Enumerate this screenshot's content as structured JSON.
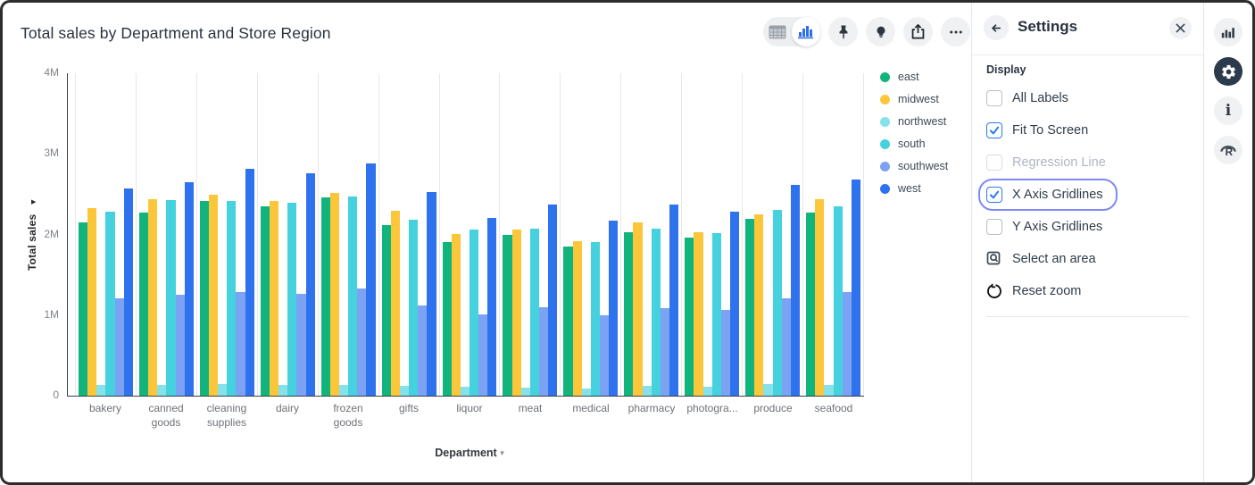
{
  "window": {
    "title": "Total sales by Department and Store Region"
  },
  "toolbar": {
    "view_toggle": {
      "options": [
        "table-view",
        "chart-view"
      ],
      "selected": "chart-view"
    },
    "buttons": [
      "pin",
      "explore",
      "share",
      "more-options"
    ]
  },
  "chart_data": {
    "type": "bar",
    "title": "Total sales by Department and Store Region",
    "xlabel": "Department",
    "ylabel": "Total sales",
    "unit": "M",
    "ylim": [
      0,
      4
    ],
    "x_gridlines": true,
    "y_gridlines": false,
    "legend_position": "right",
    "yticks": [
      {
        "label": "4M",
        "value": 4
      },
      {
        "label": "3M",
        "value": 3
      },
      {
        "label": "2M",
        "value": 2
      },
      {
        "label": "1M",
        "value": 1
      },
      {
        "label": "0",
        "value": 0
      }
    ],
    "categories": [
      "bakery",
      "canned goods",
      "cleaning supplies",
      "dairy",
      "frozen goods",
      "gifts",
      "liquor",
      "meat",
      "medical",
      "pharmacy",
      "photogra...",
      "produce",
      "seafood"
    ],
    "series": [
      {
        "name": "east",
        "color": "#12b47d",
        "values": [
          2.15,
          2.27,
          2.42,
          2.35,
          2.46,
          2.12,
          1.91,
          2.0,
          1.85,
          2.03,
          1.96,
          2.19,
          2.27
        ]
      },
      {
        "name": "midwest",
        "color": "#fcc63a",
        "values": [
          2.33,
          2.44,
          2.49,
          2.42,
          2.52,
          2.29,
          2.01,
          2.06,
          1.92,
          2.15,
          2.03,
          2.25,
          2.44
        ]
      },
      {
        "name": "northwest",
        "color": "#85e1ea",
        "values": [
          0.13,
          0.13,
          0.14,
          0.13,
          0.13,
          0.12,
          0.11,
          0.1,
          0.09,
          0.12,
          0.11,
          0.14,
          0.13
        ]
      },
      {
        "name": "south",
        "color": "#45d1de",
        "values": [
          2.28,
          2.43,
          2.42,
          2.39,
          2.47,
          2.18,
          2.06,
          2.07,
          1.91,
          2.07,
          2.02,
          2.3,
          2.35
        ]
      },
      {
        "name": "southwest",
        "color": "#7ba2f3",
        "values": [
          1.21,
          1.25,
          1.28,
          1.26,
          1.33,
          1.12,
          1.01,
          1.1,
          1.0,
          1.09,
          1.06,
          1.21,
          1.29
        ]
      },
      {
        "name": "west",
        "color": "#2f72ee",
        "values": [
          2.57,
          2.65,
          2.82,
          2.76,
          2.88,
          2.53,
          2.21,
          2.37,
          2.17,
          2.37,
          2.28,
          2.62,
          2.68
        ]
      }
    ],
    "xlabel_caret": "▾",
    "ylabel_caret": "▶"
  },
  "settings_panel": {
    "title": "Settings",
    "section": "Display",
    "items": [
      {
        "label": "All Labels",
        "type": "checkbox",
        "checked": false,
        "disabled": false,
        "focused": false
      },
      {
        "label": "Fit To Screen",
        "type": "checkbox",
        "checked": true,
        "disabled": false,
        "focused": false
      },
      {
        "label": "Regression Line",
        "type": "checkbox",
        "checked": false,
        "disabled": true,
        "focused": false
      },
      {
        "label": "X Axis Gridlines",
        "type": "checkbox",
        "checked": true,
        "disabled": false,
        "focused": true
      },
      {
        "label": "Y Axis Gridlines",
        "type": "checkbox",
        "checked": false,
        "disabled": false,
        "focused": false
      },
      {
        "label": "Select an area",
        "type": "action",
        "icon": "area-select-icon"
      },
      {
        "label": "Reset zoom",
        "type": "action",
        "icon": "reset-zoom-icon"
      }
    ]
  },
  "sidebar": {
    "items": [
      {
        "icon": "bar-chart-icon",
        "active": false
      },
      {
        "icon": "gear-icon",
        "active": true
      },
      {
        "icon": "info-icon",
        "active": false
      },
      {
        "icon": "r-logo-icon",
        "active": false
      }
    ]
  },
  "colors": {
    "accent_blue": "#2979f2",
    "focus_ring": "#7d89f8",
    "gridline": "#e8e8e8",
    "axis": "#3a3f46"
  }
}
